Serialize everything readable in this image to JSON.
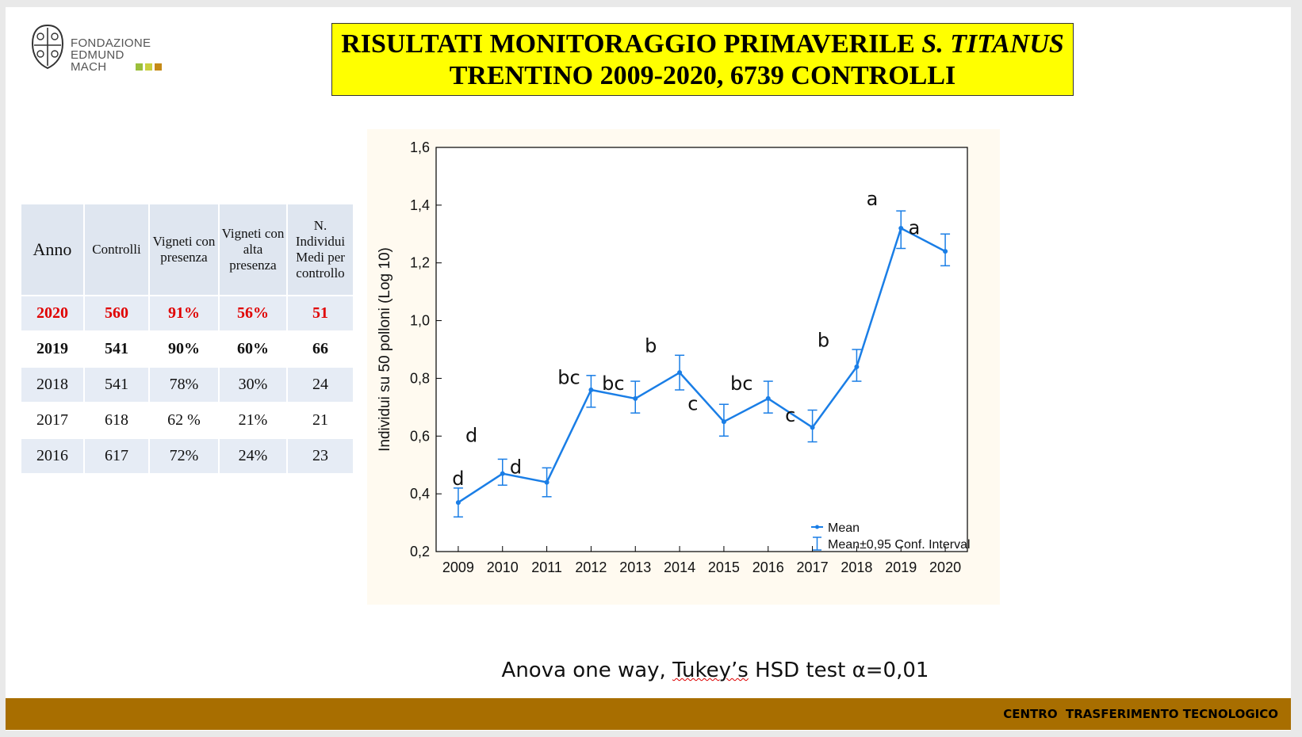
{
  "logo": {
    "lines": [
      "FONDAZIONE",
      "EDMUND",
      "MACH"
    ],
    "icon": "crest-logo-icon",
    "square_colors": [
      "#9bbf3b",
      "#c9cf3e",
      "#c58a16"
    ]
  },
  "title": {
    "line1_prefix": "RISULTATI MONITORAGGIO PRIMAVERILE ",
    "line1_italic": "S. TITANUS",
    "line2": "TRENTINO 2009-2020, 6739 CONTROLLI",
    "background": "#ffff00"
  },
  "table": {
    "headers": [
      "Anno",
      "Controlli",
      "Vigneti con presenza",
      "Vigneti con alta presenza",
      "N. Individui Medi per controllo"
    ],
    "rows": [
      [
        "2020",
        "560",
        "91%",
        "56%",
        "51"
      ],
      [
        "2019",
        "541",
        "90%",
        "60%",
        "66"
      ],
      [
        "2018",
        "541",
        "78%",
        "30%",
        "24"
      ],
      [
        "2017",
        "618",
        "62 %",
        "21%",
        "21"
      ],
      [
        "2016",
        "617",
        "72%",
        "24%",
        "23"
      ]
    ],
    "highlight_color": "#e00000"
  },
  "chart_data": {
    "type": "line",
    "x": [
      2009,
      2010,
      2011,
      2012,
      2013,
      2014,
      2015,
      2016,
      2017,
      2018,
      2019,
      2020
    ],
    "x_tick_labels": [
      "2009",
      "2010",
      "2011",
      "2012",
      "2013",
      "2014",
      "2015",
      "2016",
      "2017",
      "2018",
      "2019",
      "2020"
    ],
    "series": [
      {
        "name": "Mean",
        "values": [
          0.37,
          0.47,
          0.44,
          0.76,
          0.73,
          0.82,
          0.65,
          0.73,
          0.63,
          0.84,
          1.32,
          1.24
        ],
        "ci_low": [
          0.32,
          0.43,
          0.39,
          0.7,
          0.68,
          0.76,
          0.6,
          0.68,
          0.58,
          0.79,
          1.25,
          1.19
        ],
        "ci_high": [
          0.42,
          0.52,
          0.49,
          0.81,
          0.79,
          0.88,
          0.71,
          0.79,
          0.69,
          0.9,
          1.38,
          1.3
        ],
        "color": "#1a7ee6"
      }
    ],
    "error_bar_label": "Mean±0,95 Conf. Interval",
    "ylabel": "Individui su 50 polloni (Log 10)",
    "xlabel": "",
    "ylim": [
      0.2,
      1.6
    ],
    "y_ticks": [
      0.2,
      0.4,
      0.6,
      0.8,
      1.0,
      1.2,
      1.4,
      1.6
    ],
    "y_tick_labels": [
      "0,2",
      "0,4",
      "0,6",
      "0,8",
      "1,0",
      "1,2",
      "1,4",
      "1,6"
    ],
    "grid": false,
    "legend_position": "bottom-right",
    "letter_annotations": [
      {
        "text": "d",
        "x": 2009,
        "y": 0.43
      },
      {
        "text": "d",
        "x": 2009.3,
        "y": 0.58
      },
      {
        "text": "d",
        "x": 2010.3,
        "y": 0.47
      },
      {
        "text": "bc",
        "x": 2011.5,
        "y": 0.78
      },
      {
        "text": "bc",
        "x": 2012.5,
        "y": 0.76
      },
      {
        "text": "b",
        "x": 2013.35,
        "y": 0.89
      },
      {
        "text": "c",
        "x": 2014.3,
        "y": 0.69
      },
      {
        "text": "bc",
        "x": 2015.4,
        "y": 0.76
      },
      {
        "text": "c",
        "x": 2016.5,
        "y": 0.65
      },
      {
        "text": "b",
        "x": 2017.25,
        "y": 0.91
      },
      {
        "text": "a",
        "x": 2018.35,
        "y": 1.4
      },
      {
        "text": "a",
        "x": 2019.3,
        "y": 1.3
      }
    ]
  },
  "footnote": {
    "before": "Anova one way, ",
    "squiggle": "Tukey’s",
    "after": " HSD test α=0,01"
  },
  "footer": {
    "text": "CENTRO  TRASFERIMENTO TECNOLOGICO",
    "bar_color": "#a86e00"
  }
}
